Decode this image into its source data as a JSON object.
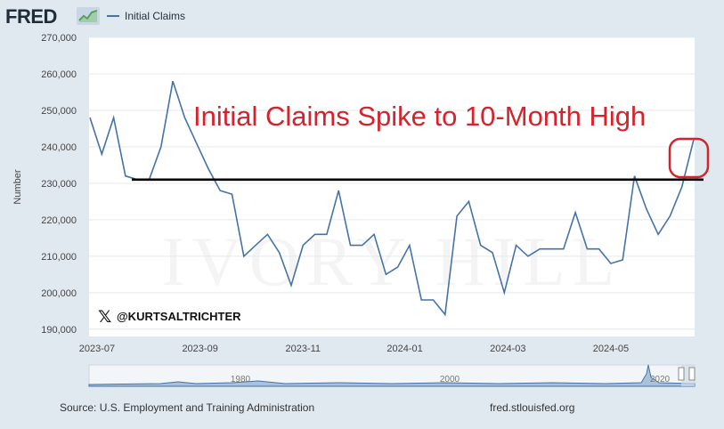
{
  "header": {
    "logo_text": "FRED",
    "logo_icon": "line-chart-icon",
    "legend_label": "Initial Claims",
    "series_color": "#4572a7"
  },
  "watermark": "IVORY HILL",
  "handle": "@KURTSALTRICHTER",
  "footer": {
    "source": "Source: U.S. Employment and Training Administration",
    "site": "fred.stlouisfed.org"
  },
  "chart_data": {
    "type": "line",
    "title": "",
    "xlabel": "",
    "ylabel": "Number",
    "ylim": [
      188000,
      270000
    ],
    "y_ticks": [
      190000,
      200000,
      210000,
      220000,
      230000,
      240000,
      250000,
      260000,
      270000
    ],
    "y_tick_labels": [
      "190,000",
      "200,000",
      "210,000",
      "220,000",
      "230,000",
      "240,000",
      "250,000",
      "260,000",
      "270,000"
    ],
    "x_ticks": [
      "2023-07",
      "2023-09",
      "2023-11",
      "2024-01",
      "2024-03",
      "2024-05"
    ],
    "grid": "horizontal",
    "annotation": "Initial Claims Spike to 10-Month High",
    "reference_line": 231000,
    "highlight": "latest value circled in red",
    "series": [
      {
        "name": "Initial Claims",
        "color": "#4572a7",
        "values": [
          248000,
          238000,
          248000,
          232000,
          231000,
          231000,
          240000,
          258000,
          248000,
          241000,
          234000,
          228000,
          227000,
          210000,
          213000,
          216000,
          211000,
          202000,
          213000,
          216000,
          216000,
          228000,
          213000,
          213000,
          216000,
          205000,
          207000,
          213000,
          198000,
          198000,
          194000,
          221000,
          225000,
          213000,
          211000,
          200000,
          213000,
          210000,
          212000,
          212000,
          212000,
          222000,
          212000,
          212000,
          208000,
          209000,
          232000,
          223000,
          216000,
          221000,
          229000,
          242000
        ]
      }
    ],
    "navigator": {
      "labels": [
        "1980",
        "2000",
        "2020"
      ]
    }
  }
}
